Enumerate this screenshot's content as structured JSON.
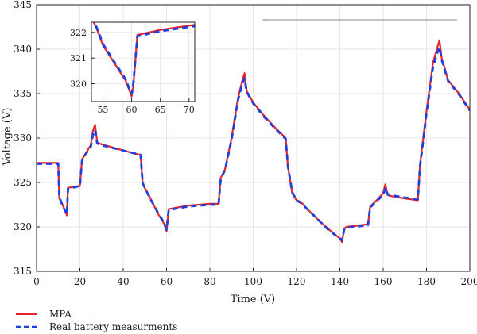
{
  "chart_data": [
    {
      "type": "line",
      "xlabel": "Time (V)",
      "ylabel": "Voltage (V)",
      "xlim": [
        0,
        200
      ],
      "ylim": [
        315,
        345
      ],
      "x_ticks": [
        0,
        20,
        40,
        60,
        80,
        100,
        120,
        140,
        160,
        180,
        200
      ],
      "y_ticks": [
        315,
        320,
        325,
        330,
        335,
        340,
        345
      ],
      "grid": true,
      "legend": {
        "placement": "below-left",
        "entries": [
          {
            "label": "MPA",
            "color": "#e8242b",
            "style": "solid"
          },
          {
            "label": "Real battery measurments",
            "color": "#1f3fe0",
            "style": "dashed"
          }
        ]
      },
      "series": [
        {
          "name": "MPA",
          "color": "#e8242b",
          "style": "solid",
          "x": [
            0,
            10,
            10.5,
            12,
            14,
            14.5,
            20,
            21,
            23,
            25,
            26,
            27,
            28,
            30,
            40,
            48,
            49,
            52,
            56,
            59,
            60,
            61,
            70,
            80,
            84,
            85,
            87,
            90,
            93,
            95,
            96,
            97,
            100,
            105,
            110,
            115,
            116,
            118,
            120,
            122,
            125,
            130,
            135,
            140,
            141,
            142,
            143,
            150,
            153,
            154,
            157,
            160,
            161,
            162,
            163,
            170,
            176,
            177,
            180,
            183,
            185,
            186,
            187,
            190,
            195,
            200
          ],
          "y": [
            327.2,
            327.2,
            323.2,
            322.5,
            321.3,
            324.4,
            324.6,
            327.6,
            328.4,
            329.2,
            330.8,
            331.5,
            329.5,
            329.3,
            328.6,
            328.1,
            324.8,
            323.5,
            321.5,
            320.3,
            319.5,
            322,
            322.4,
            322.6,
            322.6,
            325.5,
            326.5,
            330,
            334.5,
            336.5,
            337.3,
            335.3,
            334,
            332.5,
            331.2,
            330,
            326.8,
            323.8,
            323,
            322.8,
            322,
            320.8,
            319.7,
            318.7,
            318.3,
            319.8,
            320,
            320.2,
            320.3,
            322.3,
            323,
            323.8,
            324.8,
            323.6,
            323.5,
            323.2,
            323,
            327,
            333,
            338.5,
            340.2,
            341,
            339,
            336.5,
            335,
            333.2
          ]
        },
        {
          "name": "Real battery measurments",
          "color": "#1f3fe0",
          "style": "dashed",
          "x": [
            0,
            10,
            10.5,
            12,
            14,
            14.5,
            20,
            21,
            23,
            25,
            26,
            27,
            28,
            30,
            40,
            48,
            49,
            52,
            56,
            59,
            60,
            61,
            70,
            80,
            84,
            85,
            87,
            90,
            93,
            95,
            96,
            97,
            100,
            105,
            110,
            115,
            116,
            118,
            120,
            122,
            125,
            130,
            135,
            140,
            141,
            142,
            143,
            150,
            153,
            154,
            157,
            160,
            161,
            162,
            163,
            170,
            176,
            177,
            180,
            183,
            185,
            186,
            187,
            190,
            195,
            200
          ],
          "y": [
            327.1,
            327.1,
            323.4,
            322.4,
            321.4,
            324.3,
            324.6,
            327.5,
            328.3,
            329,
            330.3,
            330.9,
            329.4,
            329.2,
            328.6,
            328.1,
            324.9,
            323.4,
            321.6,
            320.4,
            319.7,
            321.9,
            322.3,
            322.5,
            322.5,
            325.4,
            326.4,
            329.8,
            334.3,
            336.1,
            336.7,
            335.2,
            333.9,
            332.4,
            331.1,
            329.9,
            326.9,
            323.9,
            323,
            322.7,
            322,
            320.8,
            319.6,
            318.7,
            318.5,
            319.7,
            319.9,
            320.1,
            320.2,
            322.2,
            322.9,
            323.6,
            324.4,
            323.7,
            323.6,
            323.3,
            323.1,
            326.8,
            332.8,
            338,
            339.6,
            340.2,
            338.8,
            336.4,
            334.9,
            333.1
          ]
        }
      ]
    },
    {
      "type": "line",
      "inset": true,
      "xlim": [
        53,
        71
      ],
      "ylim": [
        319.3,
        322.4
      ],
      "x_ticks": [
        55,
        60,
        65,
        70
      ],
      "y_ticks": [
        320,
        321,
        322
      ],
      "grid": true,
      "series": [
        {
          "name": "MPA",
          "color": "#e8242b",
          "style": "solid",
          "x": [
            53,
            54,
            55,
            57,
            59,
            59.5,
            60,
            60.3,
            61,
            65,
            71
          ],
          "y": [
            322.6,
            322.1,
            321.5,
            320.8,
            320.1,
            319.8,
            319.5,
            319.9,
            321.9,
            322.1,
            322.3
          ]
        },
        {
          "name": "Real battery measurments",
          "color": "#1f3fe0",
          "style": "dashed",
          "x": [
            53,
            54,
            55,
            57,
            59,
            59.5,
            60,
            60.3,
            61,
            65,
            71
          ],
          "y": [
            322.6,
            322.15,
            321.55,
            320.85,
            320.15,
            319.85,
            319.6,
            320,
            321.85,
            322.05,
            322.25
          ]
        }
      ]
    }
  ]
}
